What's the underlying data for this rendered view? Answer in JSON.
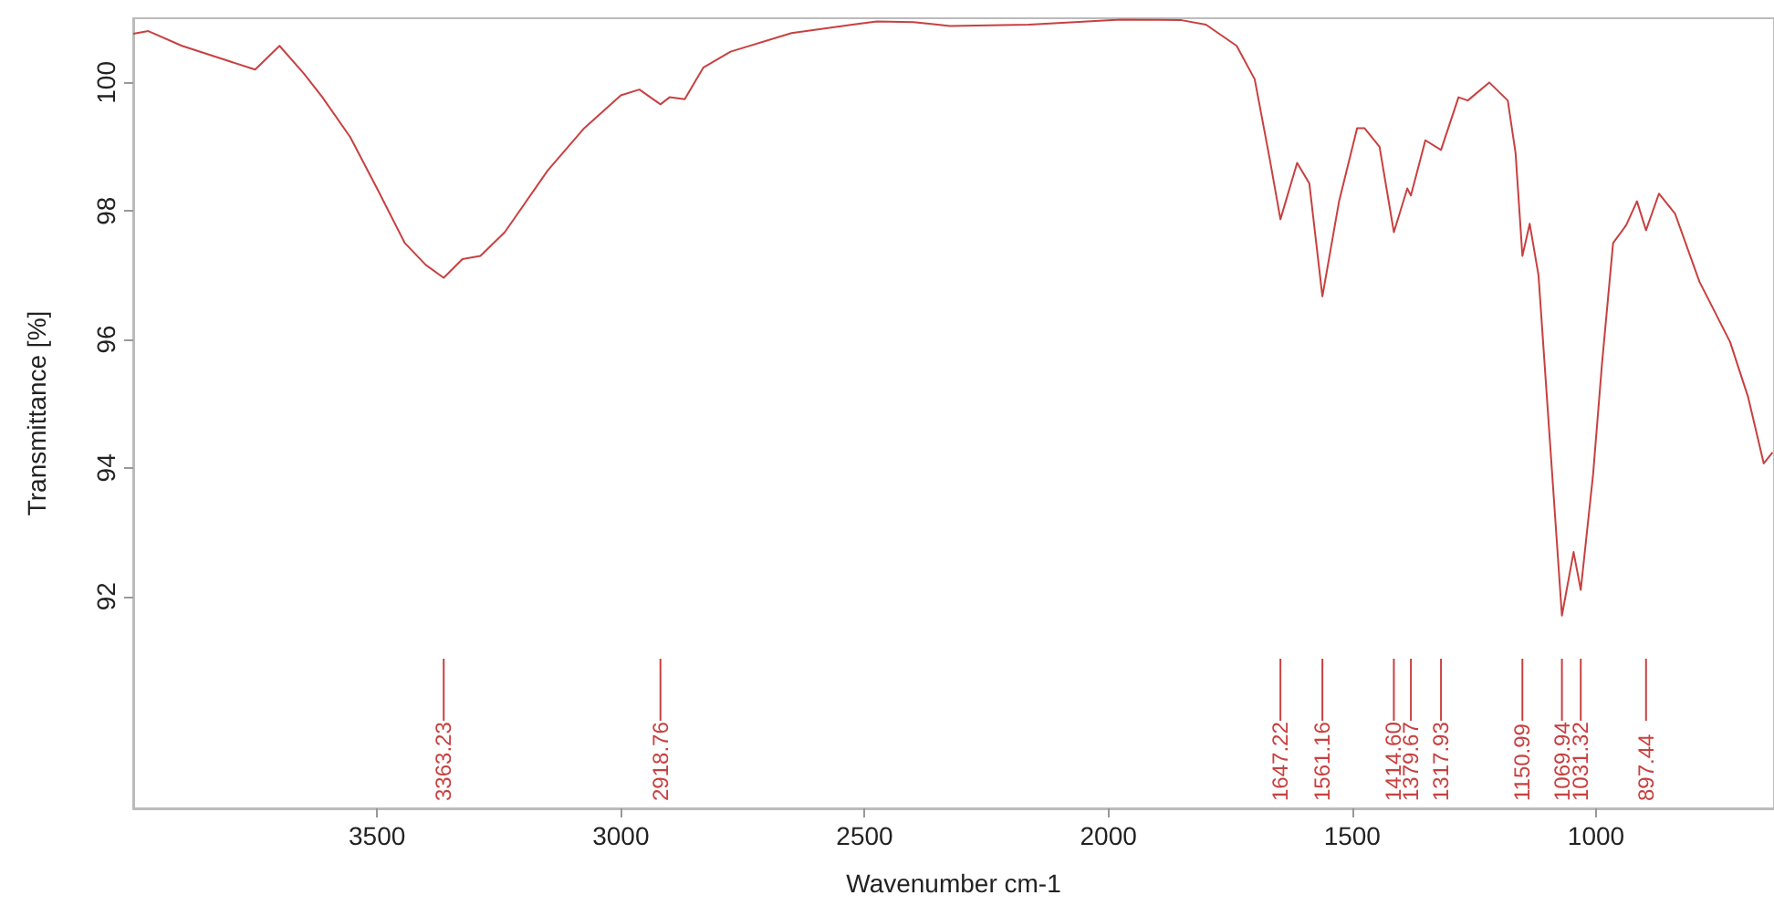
{
  "chart_data": {
    "type": "line",
    "xlabel": "Wavenumber cm-1",
    "ylabel": "Transmittance [%]",
    "xlim": [
      4000,
      635
    ],
    "xticks": [
      3500,
      3000,
      2500,
      2000,
      1500,
      1000
    ],
    "ylim": [
      88.7,
      101.0
    ],
    "yticks": [
      92,
      94,
      96,
      98,
      100
    ],
    "grid": false,
    "marker": "none",
    "line_style": "solid",
    "series": [
      {
        "color": "#c84040",
        "x": [
          4000,
          3969,
          3900,
          3750,
          3700,
          3650,
          3612,
          3555,
          3500,
          3443,
          3400,
          3363.23,
          3325,
          3288,
          3238,
          3150,
          3075,
          3000,
          2962,
          2918.76,
          2900,
          2869,
          2831,
          2775,
          2650,
          2525,
          2475,
          2400,
          2325,
          2163,
          1975,
          1850,
          1800,
          1737,
          1700,
          1669,
          1647.22,
          1613,
          1588,
          1561.16,
          1527,
          1490,
          1475,
          1444,
          1414.6,
          1387,
          1379.67,
          1350,
          1317.93,
          1282,
          1263,
          1219,
          1181,
          1165,
          1150.99,
          1136,
          1118,
          1069.94,
          1046,
          1031.32,
          1006,
          988,
          965,
          938,
          916,
          897.44,
          871,
          838,
          788,
          725,
          688,
          656,
          638
        ],
        "values": [
          100.76,
          100.8,
          100.57,
          100.2,
          100.57,
          100.14,
          99.77,
          99.15,
          98.35,
          97.5,
          97.16,
          96.96,
          97.25,
          97.3,
          97.67,
          98.63,
          99.29,
          99.8,
          99.89,
          99.66,
          99.77,
          99.74,
          100.23,
          100.48,
          100.77,
          100.9,
          100.95,
          100.94,
          100.88,
          100.9,
          100.98,
          100.97,
          100.9,
          100.57,
          100.05,
          98.8,
          97.87,
          98.75,
          98.43,
          96.67,
          98.15,
          99.29,
          99.29,
          99.0,
          97.67,
          98.35,
          98.24,
          99.1,
          98.95,
          99.77,
          99.72,
          100.0,
          99.72,
          98.9,
          97.3,
          97.8,
          97.0,
          91.7,
          92.69,
          92.1,
          93.9,
          95.6,
          97.5,
          97.78,
          98.15,
          97.7,
          98.27,
          97.96,
          96.9,
          95.96,
          95.1,
          94.07,
          94.24
        ]
      }
    ],
    "annotations": [
      "3363.23",
      "2918.76",
      "1647.22",
      "1561.16",
      "1414.60",
      "1379.67",
      "1317.93",
      "1150.99",
      "1069.94",
      "1031.32",
      "897.44"
    ]
  }
}
